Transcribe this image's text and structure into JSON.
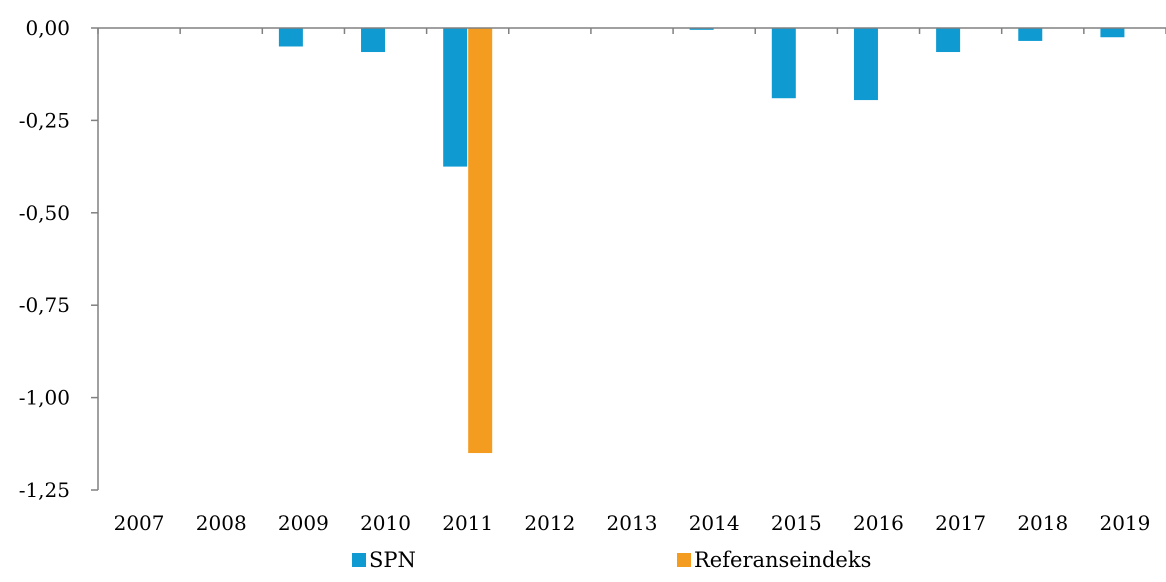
{
  "chart_data": {
    "type": "bar",
    "title": "",
    "xlabel": "",
    "ylabel": "",
    "categories": [
      "2007",
      "2008",
      "2009",
      "2010",
      "2011",
      "2012",
      "2013",
      "2014",
      "2015",
      "2016",
      "2017",
      "2018",
      "2019"
    ],
    "series": [
      {
        "name": "SPN",
        "color": "#0f9bd1",
        "values": [
          0,
          0,
          -0.05,
          -0.065,
          -0.375,
          0,
          0,
          -0.005,
          -0.19,
          -0.195,
          -0.065,
          -0.035,
          -0.025
        ]
      },
      {
        "name": "Referanseindeks",
        "color": "#f39c1f",
        "values": [
          0,
          0,
          0,
          0,
          -1.15,
          0,
          0,
          0,
          0,
          0,
          0,
          0,
          0
        ]
      }
    ],
    "ylim": [
      -1.25,
      0
    ],
    "yticks": [
      0,
      -0.25,
      -0.5,
      -0.75,
      -1.0,
      -1.25
    ],
    "ytick_labels": [
      "0,00",
      "-0,25",
      "-0,50",
      "-0,75",
      "-1,00",
      "-1,25"
    ],
    "grid": false,
    "legend_position": "bottom"
  }
}
